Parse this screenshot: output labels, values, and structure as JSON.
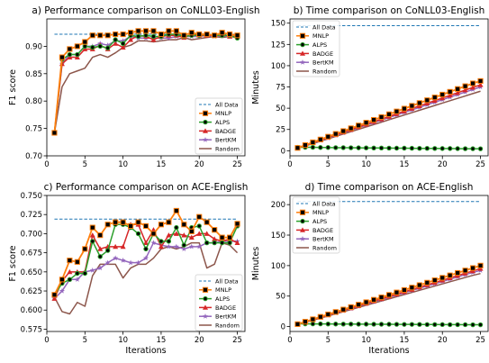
{
  "chart_data": [
    {
      "type": "line",
      "title": "a) Performance comparison on CoNLL03-English",
      "xlabel": "",
      "ylabel": "F1 score",
      "xlim": [
        0,
        26
      ],
      "ylim": [
        0.7,
        0.95
      ],
      "xticks": [
        0,
        5,
        10,
        15,
        20,
        25
      ],
      "yticks": [
        0.7,
        0.75,
        0.8,
        0.85,
        0.9
      ],
      "legend_position": "bottom-right",
      "x": [
        1,
        2,
        3,
        4,
        5,
        6,
        7,
        8,
        9,
        10,
        11,
        12,
        13,
        14,
        15,
        16,
        17,
        18,
        19,
        20,
        21,
        22,
        23,
        24,
        25
      ],
      "reference": {
        "name": "All Data",
        "value": 0.922
      },
      "series": [
        {
          "name": "MNLP",
          "values": [
            0.742,
            0.88,
            0.895,
            0.9,
            0.908,
            0.92,
            0.92,
            0.92,
            0.922,
            0.922,
            0.925,
            0.928,
            0.928,
            0.928,
            0.922,
            0.928,
            0.928,
            0.92,
            0.925,
            0.922,
            0.922,
            0.92,
            0.925,
            0.922,
            0.92
          ]
        },
        {
          "name": "ALPS",
          "values": [
            0.742,
            0.876,
            0.885,
            0.885,
            0.9,
            0.898,
            0.9,
            0.897,
            0.912,
            0.905,
            0.92,
            0.918,
            0.92,
            0.918,
            0.918,
            0.922,
            0.922,
            0.918,
            0.92,
            0.92,
            0.922,
            0.92,
            0.92,
            0.92,
            0.915
          ]
        },
        {
          "name": "BADGE",
          "values": [
            0.742,
            0.868,
            0.88,
            0.88,
            0.895,
            0.895,
            0.902,
            0.895,
            0.905,
            0.898,
            0.912,
            0.92,
            0.918,
            0.912,
            0.918,
            0.92,
            0.92,
            0.916,
            0.922,
            0.92,
            0.92,
            0.92,
            0.922,
            0.918,
            0.918
          ]
        },
        {
          "name": "BertKM",
          "values": [
            0.742,
            0.868,
            0.885,
            0.885,
            0.9,
            0.9,
            0.905,
            0.902,
            0.91,
            0.91,
            0.918,
            0.915,
            0.915,
            0.915,
            0.915,
            0.915,
            0.918,
            0.918,
            0.918,
            0.918,
            0.92,
            0.918,
            0.92,
            0.918,
            0.918
          ]
        },
        {
          "name": "Random",
          "values": [
            0.742,
            0.826,
            0.85,
            0.855,
            0.86,
            0.88,
            0.885,
            0.88,
            0.888,
            0.898,
            0.902,
            0.91,
            0.91,
            0.908,
            0.91,
            0.912,
            0.912,
            0.916,
            0.912,
            0.914,
            0.916,
            0.918,
            0.916,
            0.918,
            0.916
          ]
        }
      ]
    },
    {
      "type": "line",
      "title": "b) Time comparison on CoNLL03-English",
      "xlabel": "",
      "ylabel": "Minutes",
      "xlim": [
        0,
        26
      ],
      "ylim": [
        -6,
        155
      ],
      "xticks": [
        0,
        5,
        10,
        15,
        20,
        25
      ],
      "yticks": [
        0,
        25,
        50,
        75,
        100,
        125,
        150
      ],
      "legend_position": "top-left",
      "x": [
        1,
        2,
        3,
        4,
        5,
        6,
        7,
        8,
        9,
        10,
        11,
        12,
        13,
        14,
        15,
        16,
        17,
        18,
        19,
        20,
        21,
        22,
        23,
        24,
        25
      ],
      "reference": {
        "name": "All Data",
        "value": 147
      },
      "series": [
        {
          "name": "MNLP",
          "values": [
            3.3,
            6.6,
            9.9,
            13.2,
            16.5,
            19.8,
            23.1,
            26.4,
            29.7,
            33,
            36.3,
            39.6,
            42.9,
            46.2,
            49.5,
            52.8,
            56.1,
            59.4,
            62.7,
            66,
            69.3,
            72.6,
            75.9,
            79.2,
            82
          ]
        },
        {
          "name": "ALPS",
          "values": [
            4,
            4,
            4,
            3.8,
            3.8,
            3.6,
            3.6,
            3.5,
            3.4,
            3.3,
            3.2,
            3.2,
            3.1,
            3,
            3,
            2.9,
            2.8,
            2.8,
            2.7,
            2.6,
            2.6,
            2.5,
            2.4,
            2.4,
            2.3
          ]
        },
        {
          "name": "BADGE",
          "values": [
            3.1,
            6.2,
            9.3,
            12.4,
            15.5,
            18.6,
            21.7,
            24.8,
            27.9,
            31,
            34.1,
            37.2,
            40.3,
            43.4,
            46.5,
            49.6,
            52.7,
            55.8,
            58.9,
            62,
            65.1,
            68.2,
            71.3,
            74.4,
            77.5
          ]
        },
        {
          "name": "BertKM",
          "values": [
            3,
            6,
            9,
            12,
            15,
            18,
            21,
            24,
            27,
            30,
            33,
            36,
            39,
            42,
            45,
            48,
            51,
            54,
            57,
            60,
            63,
            66,
            69,
            72,
            75
          ]
        },
        {
          "name": "Random",
          "values": [
            2.8,
            5.6,
            8.4,
            11.2,
            14,
            16.8,
            19.6,
            22.4,
            25.2,
            28,
            30.8,
            33.6,
            36.4,
            39.2,
            42,
            44.8,
            47.6,
            50.4,
            53.2,
            56,
            58.8,
            61.6,
            64.4,
            67.2,
            70
          ]
        }
      ]
    },
    {
      "type": "line",
      "title": "c) Performance comparison on ACE-English",
      "xlabel": "Iterations",
      "ylabel": "F1 score",
      "xlim": [
        0,
        26
      ],
      "ylim": [
        0.572,
        0.75
      ],
      "xticks": [
        0,
        5,
        10,
        15,
        20,
        25
      ],
      "yticks": [
        0.575,
        0.6,
        0.625,
        0.65,
        0.675,
        0.7,
        0.725,
        0.75
      ],
      "legend_position": "bottom-right",
      "x": [
        1,
        2,
        3,
        4,
        5,
        6,
        7,
        8,
        9,
        10,
        11,
        12,
        13,
        14,
        15,
        16,
        17,
        18,
        19,
        20,
        21,
        22,
        23,
        24,
        25
      ],
      "reference": {
        "name": "All Data",
        "value": 0.719
      },
      "series": [
        {
          "name": "MNLP",
          "values": [
            0.62,
            0.64,
            0.665,
            0.663,
            0.68,
            0.708,
            0.698,
            0.712,
            0.715,
            0.715,
            0.71,
            0.715,
            0.71,
            0.7,
            0.712,
            0.715,
            0.73,
            0.712,
            0.703,
            0.722,
            0.715,
            0.705,
            0.695,
            0.695,
            0.713
          ]
        },
        {
          "name": "ALPS",
          "values": [
            0.62,
            0.635,
            0.64,
            0.648,
            0.648,
            0.69,
            0.67,
            0.678,
            0.712,
            0.712,
            0.708,
            0.7,
            0.68,
            0.7,
            0.69,
            0.69,
            0.708,
            0.685,
            0.708,
            0.71,
            0.688,
            0.688,
            0.688,
            0.688,
            0.71
          ]
        },
        {
          "name": "BADGE",
          "values": [
            0.615,
            0.638,
            0.65,
            0.65,
            0.65,
            0.698,
            0.68,
            0.683,
            0.683,
            0.683,
            0.712,
            0.712,
            0.688,
            0.705,
            0.683,
            0.698,
            0.7,
            0.698,
            0.695,
            0.7,
            0.7,
            0.693,
            0.69,
            0.693,
            0.688
          ]
        },
        {
          "name": "BertKM",
          "values": [
            0.615,
            0.625,
            0.64,
            0.64,
            0.65,
            0.652,
            0.655,
            0.662,
            0.668,
            0.665,
            0.662,
            0.662,
            0.668,
            0.688,
            0.685,
            0.683,
            0.683,
            0.68,
            0.683,
            0.683,
            0.688,
            0.688,
            0.69,
            0.69,
            0.69
          ]
        },
        {
          "name": "Random",
          "values": [
            0.617,
            0.598,
            0.595,
            0.61,
            0.605,
            0.645,
            0.66,
            0.66,
            0.66,
            0.642,
            0.655,
            0.66,
            0.66,
            0.668,
            0.68,
            0.683,
            0.68,
            0.683,
            0.688,
            0.688,
            0.655,
            0.66,
            0.688,
            0.685,
            0.675
          ]
        }
      ]
    },
    {
      "type": "line",
      "title": "d) Time comparison on ACE-English",
      "xlabel": "Iterations",
      "ylabel": "Minutes",
      "xlim": [
        0,
        26
      ],
      "ylim": [
        -8,
        215
      ],
      "xticks": [
        0,
        5,
        10,
        15,
        20,
        25
      ],
      "yticks": [
        0,
        50,
        100,
        150,
        200
      ],
      "legend_position": "top-left",
      "x": [
        1,
        2,
        3,
        4,
        5,
        6,
        7,
        8,
        9,
        10,
        11,
        12,
        13,
        14,
        15,
        16,
        17,
        18,
        19,
        20,
        21,
        22,
        23,
        24,
        25
      ],
      "reference": {
        "name": "All Data",
        "value": 205
      },
      "series": [
        {
          "name": "MNLP",
          "values": [
            4,
            8,
            12,
            16,
            20,
            24,
            28,
            32,
            36,
            40,
            44,
            48,
            52,
            56,
            60,
            64,
            68,
            72,
            76,
            80,
            84,
            88,
            92,
            96,
            100
          ]
        },
        {
          "name": "ALPS",
          "values": [
            4.5,
            4.5,
            4.4,
            4.4,
            4.3,
            4.2,
            4.1,
            4.1,
            4,
            4,
            3.9,
            3.8,
            3.8,
            3.7,
            3.6,
            3.6,
            3.5,
            3.4,
            3.4,
            3.3,
            3.2,
            3.2,
            3.1,
            3,
            3
          ]
        },
        {
          "name": "BADGE",
          "values": [
            3.8,
            7.6,
            11.4,
            15.2,
            19,
            22.8,
            26.6,
            30.4,
            34.2,
            38,
            41.8,
            45.6,
            49.4,
            53.2,
            57,
            60.8,
            64.6,
            68.4,
            72.2,
            76,
            79.8,
            83.6,
            87.4,
            91.2,
            95
          ]
        },
        {
          "name": "BertKM",
          "values": [
            3.7,
            7.4,
            11.1,
            14.8,
            18.5,
            22.2,
            25.9,
            29.6,
            33.3,
            37,
            40.7,
            44.4,
            48.1,
            51.8,
            55.5,
            59.2,
            62.9,
            66.6,
            70.3,
            74,
            77.7,
            81.4,
            85.1,
            88.8,
            92
          ]
        },
        {
          "name": "Random",
          "values": [
            3.5,
            7,
            10.5,
            14,
            17.5,
            21,
            24.5,
            28,
            31.5,
            35,
            38.5,
            42,
            45.5,
            49,
            52.5,
            56,
            59.5,
            63,
            66.5,
            70,
            73.5,
            77,
            80.5,
            84,
            87
          ]
        }
      ]
    }
  ],
  "styles": {
    "reference_color": "#1f77b4",
    "series": {
      "MNLP": {
        "color": "#ff7f0e",
        "marker": "square",
        "marker_fill": "#000000"
      },
      "ALPS": {
        "color": "#2ca02c",
        "marker": "circle",
        "marker_fill": "#000000"
      },
      "BADGE": {
        "color": "#d62728",
        "marker": "triangle",
        "marker_fill": "#d62728"
      },
      "BertKM": {
        "color": "#9467bd",
        "marker": "star",
        "marker_fill": "#9467bd"
      },
      "Random": {
        "color": "#8c564b",
        "marker": "none",
        "marker_fill": ""
      }
    }
  }
}
